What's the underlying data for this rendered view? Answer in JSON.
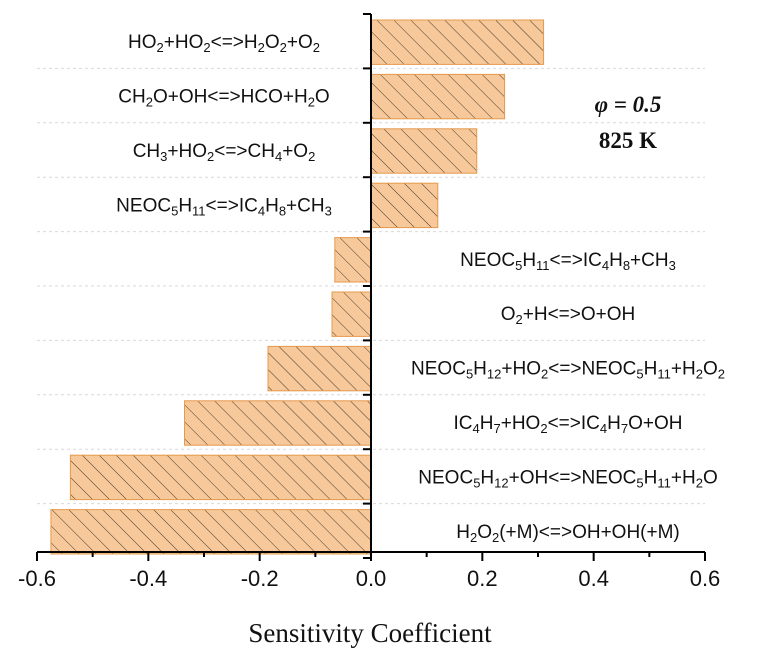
{
  "chart_data": {
    "type": "bar",
    "orientation": "horizontal",
    "xlabel": "Sensitivity Coefficient",
    "xlim": [
      -0.6,
      0.6
    ],
    "xticks": [
      "-0.6",
      "-0.4",
      "-0.2",
      "0.0",
      "0.2",
      "0.4",
      "0.6"
    ],
    "bar_color": "#f7c99a",
    "hatch_color": "#4a3a2a",
    "annotations": [
      "φ = 0.5",
      "825 K"
    ],
    "categories": [
      {
        "parts": [
          [
            "HO"
          ],
          [
            "2",
            "sub"
          ],
          [
            "+HO"
          ],
          [
            "2",
            "sub"
          ],
          [
            "<=>H"
          ],
          [
            "2",
            "sub"
          ],
          [
            "O"
          ],
          [
            "2",
            "sub"
          ],
          [
            "+O"
          ],
          [
            "2",
            "sub"
          ]
        ]
      },
      {
        "parts": [
          [
            "CH"
          ],
          [
            "2",
            "sub"
          ],
          [
            "O+OH<=>HCO+H"
          ],
          [
            "2",
            "sub"
          ],
          [
            "O"
          ]
        ]
      },
      {
        "parts": [
          [
            "CH"
          ],
          [
            "3",
            "sub"
          ],
          [
            "+HO"
          ],
          [
            "2",
            "sub"
          ],
          [
            "<=>CH"
          ],
          [
            "4",
            "sub"
          ],
          [
            "+O"
          ],
          [
            "2",
            "sub"
          ]
        ]
      },
      {
        "parts": [
          [
            "NEOC"
          ],
          [
            "5",
            "sub"
          ],
          [
            "H"
          ],
          [
            "11",
            "sub"
          ],
          [
            "<=>IC"
          ],
          [
            "4",
            "sub"
          ],
          [
            "H"
          ],
          [
            "8",
            "sub"
          ],
          [
            "+CH"
          ],
          [
            "3",
            "sub"
          ]
        ]
      },
      {
        "parts": [
          [
            "NEOC"
          ],
          [
            "5",
            "sub"
          ],
          [
            "H"
          ],
          [
            "11",
            "sub"
          ],
          [
            "<=>IC"
          ],
          [
            "4",
            "sub"
          ],
          [
            "H"
          ],
          [
            "8",
            "sub"
          ],
          [
            "+CH"
          ],
          [
            "3",
            "sub"
          ]
        ]
      },
      {
        "parts": [
          [
            "O"
          ],
          [
            "2",
            "sub"
          ],
          [
            "+H<=>O+OH"
          ]
        ]
      },
      {
        "parts": [
          [
            "NEOC"
          ],
          [
            "5",
            "sub"
          ],
          [
            "H"
          ],
          [
            "12",
            "sub"
          ],
          [
            "+HO"
          ],
          [
            "2",
            "sub"
          ],
          [
            "<=>NEOC"
          ],
          [
            "5",
            "sub"
          ],
          [
            "H"
          ],
          [
            "11",
            "sub"
          ],
          [
            "+H"
          ],
          [
            "2",
            "sub"
          ],
          [
            "O"
          ],
          [
            "2",
            "sub"
          ]
        ]
      },
      {
        "parts": [
          [
            "IC"
          ],
          [
            "4",
            "sub"
          ],
          [
            "H"
          ],
          [
            "7",
            "sub"
          ],
          [
            "+HO"
          ],
          [
            "2",
            "sub"
          ],
          [
            "<=>IC"
          ],
          [
            "4",
            "sub"
          ],
          [
            "H"
          ],
          [
            "7",
            "sub"
          ],
          [
            "O+OH"
          ]
        ]
      },
      {
        "parts": [
          [
            "NEOC"
          ],
          [
            "5",
            "sub"
          ],
          [
            "H"
          ],
          [
            "12",
            "sub"
          ],
          [
            "+OH<=>NEOC"
          ],
          [
            "5",
            "sub"
          ],
          [
            "H"
          ],
          [
            "11",
            "sub"
          ],
          [
            "+H"
          ],
          [
            "2",
            "sub"
          ],
          [
            "O"
          ]
        ]
      },
      {
        "parts": [
          [
            "H"
          ],
          [
            "2",
            "sub"
          ],
          [
            "O"
          ],
          [
            "2",
            "sub"
          ],
          [
            "(+M)<=>OH+OH(+M)"
          ]
        ]
      }
    ],
    "values": [
      0.31,
      0.24,
      0.19,
      0.12,
      -0.065,
      -0.07,
      -0.185,
      -0.335,
      -0.54,
      -0.575
    ]
  }
}
